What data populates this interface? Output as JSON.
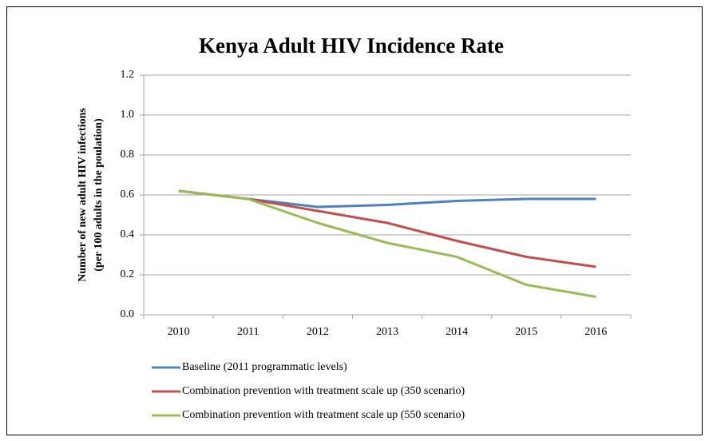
{
  "chart_data": {
    "type": "line",
    "title": "Kenya Adult HIV Incidence Rate",
    "ylabel": [
      "Number of new adult HIV infections",
      "(per 100 adults in the poulation)"
    ],
    "categories": [
      "2010",
      "2011",
      "2012",
      "2013",
      "2014",
      "2015",
      "2016"
    ],
    "series": [
      {
        "name": "Baseline (2011 programmatic levels)",
        "color": "#4f81bd",
        "values": [
          0.62,
          0.58,
          0.54,
          0.55,
          0.57,
          0.58,
          0.58
        ]
      },
      {
        "name": "Combination prevention with treatment scale up (350 scenario)",
        "color": "#c0504d",
        "values": [
          0.62,
          0.58,
          0.52,
          0.46,
          0.37,
          0.29,
          0.24
        ]
      },
      {
        "name": "Combination prevention with treatment scale up (550 scenario)",
        "color": "#9bbb59",
        "values": [
          0.62,
          0.58,
          0.46,
          0.36,
          0.29,
          0.15,
          0.09
        ]
      }
    ],
    "ylim": [
      0,
      1.2
    ],
    "yticks": [
      {
        "value": 0,
        "label": "0.0"
      },
      0.2,
      0.4,
      0.6,
      0.8,
      {
        "value": 1,
        "label": "1.0"
      },
      1.2
    ],
    "grid": true,
    "legend": "bottom"
  }
}
